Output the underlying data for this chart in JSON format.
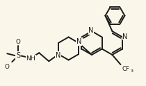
{
  "bg_color": "#faf6ea",
  "line_color": "#1a1a1a",
  "line_width": 1.4,
  "font_size": 7.0,
  "figsize": [
    2.1,
    1.24
  ],
  "dpi": 100,
  "xlim": [
    0,
    210
  ],
  "ylim": [
    0,
    124
  ]
}
